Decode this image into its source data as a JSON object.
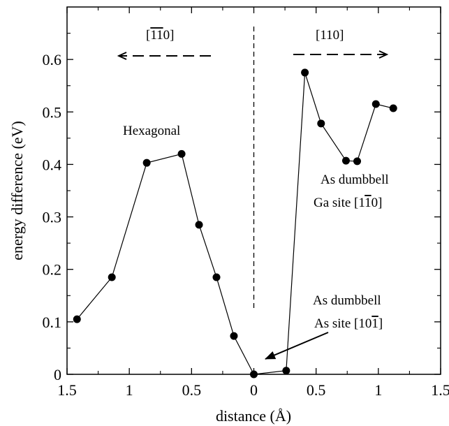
{
  "chart_data": {
    "type": "line",
    "title": "",
    "xlabel": "distance (Å)",
    "ylabel": "energy difference (eV)",
    "xlim": [
      -1.5,
      1.5
    ],
    "ylim": [
      0,
      0.7
    ],
    "x_axis_note": "reflected axis: magnitude shown on both sides of 0",
    "x_ticks": [
      -1.5,
      -1.0,
      -0.5,
      0,
      0.5,
      1.0,
      1.5
    ],
    "x_tick_labels": [
      "1.5",
      "1",
      "0.5",
      "0",
      "0.5",
      "1",
      "1.5"
    ],
    "y_ticks": [
      0,
      0.1,
      0.2,
      0.3,
      0.4,
      0.5,
      0.6
    ],
    "y_tick_labels": [
      "0",
      "0.1",
      "0.2",
      "0.3",
      "0.4",
      "0.5",
      "0.6"
    ],
    "grid": false,
    "series": [
      {
        "color": "#000000",
        "x": [
          -1.42,
          -1.14,
          -0.86,
          -0.58,
          -0.44,
          -0.3,
          -0.16,
          0,
          0.26,
          0.41,
          0.54,
          0.74,
          0.83,
          0.98,
          1.12
        ],
        "y": [
          0.105,
          0.185,
          0.403,
          0.42,
          0.285,
          0.185,
          0.073,
          0.0,
          0.007,
          0.575,
          0.478,
          0.407,
          0.406,
          0.515,
          0.507
        ]
      }
    ],
    "divider": {
      "x": 0,
      "style": "dashed"
    },
    "directions": {
      "left": {
        "prefix": "[",
        "over": "11",
        "suffix": "0]"
      },
      "right": {
        "text": "[110]"
      }
    },
    "annotations": {
      "hexagonal": "Hexagonal",
      "ga_line1": "As dumbbell",
      "ga_line2_prefix": "Ga site [1",
      "ga_line2_over": "1",
      "ga_line2_suffix": "0]",
      "as_line1": "As dumbbell",
      "as_line2_prefix": "As site [10",
      "as_line2_over": "1",
      "as_line2_suffix": "]"
    }
  }
}
